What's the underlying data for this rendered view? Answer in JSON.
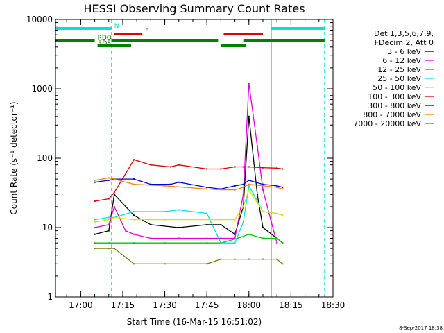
{
  "chart_data": {
    "type": "line",
    "title": "HESSI Observing Summary Count Rates",
    "xlabel": "Start Time (16-Mar-15 16:51:02)",
    "ylabel": "Count Rate (s⁻¹ detector⁻¹)",
    "timestamp": "8-Sep-2017 18:38",
    "y_scale": "log",
    "xlim": [
      "16:51",
      "18:30"
    ],
    "ylim": [
      1,
      10000
    ],
    "x_ticks": [
      "17:00",
      "17:15",
      "17:30",
      "17:45",
      "18:00",
      "18:15",
      "18:30"
    ],
    "y_ticks": [
      "1",
      "10",
      "100",
      "1000",
      "10000"
    ],
    "legend_header": [
      "Det 1,3,5,6,7,9,",
      "FDecim 2, Att 0"
    ],
    "legend_position": "right",
    "series": [
      {
        "name": "3 - 6 keV",
        "color": "#000000",
        "x": [
          "17:05",
          "17:10",
          "17:12",
          "17:19",
          "17:25",
          "17:35",
          "17:45",
          "17:50",
          "17:55",
          "17:58",
          "18:00",
          "18:03",
          "18:05",
          "18:10",
          "18:12"
        ],
        "values": [
          8,
          9,
          30,
          15,
          11,
          10,
          11,
          11,
          8,
          20,
          400,
          30,
          10,
          7,
          6
        ]
      },
      {
        "name": "6 - 12 keV",
        "color": "#e000e0",
        "x": [
          "17:05",
          "17:10",
          "17:12",
          "17:16",
          "17:19",
          "17:25",
          "17:35",
          "17:45",
          "17:50",
          "17:55",
          "17:58",
          "18:00",
          "18:03",
          "18:05",
          "18:08",
          "18:10"
        ],
        "values": [
          10,
          11,
          20,
          9,
          8,
          7,
          7,
          7,
          7,
          7,
          30,
          1200,
          150,
          35,
          12,
          6
        ]
      },
      {
        "name": "12 - 25 keV",
        "color": "#00c800",
        "x": [
          "17:05",
          "17:10",
          "17:19",
          "17:30",
          "17:45",
          "17:50",
          "17:56",
          "18:00",
          "18:05",
          "18:10",
          "18:12"
        ],
        "values": [
          6,
          6,
          6,
          6,
          6,
          6,
          7,
          8,
          7,
          7,
          6
        ]
      },
      {
        "name": "25 - 50 keV",
        "color": "#00e0e0",
        "x": [
          "17:05",
          "17:10",
          "17:12",
          "17:19",
          "17:30",
          "17:35",
          "17:45",
          "17:50",
          "17:55",
          "17:58",
          "18:00",
          "18:05",
          "18:10",
          "18:12"
        ],
        "values": [
          13,
          14,
          14,
          17,
          17,
          18,
          16,
          6,
          6,
          12,
          40,
          17,
          16,
          15
        ]
      },
      {
        "name": "50 - 100 keV",
        "color": "#e0e000",
        "x": [
          "17:05",
          "17:10",
          "17:12",
          "17:19",
          "17:30",
          "17:45",
          "17:50",
          "17:55",
          "17:58",
          "18:00",
          "18:05",
          "18:10",
          "18:12"
        ],
        "values": [
          12,
          13,
          14,
          13,
          13,
          13,
          13,
          13,
          20,
          35,
          17,
          16,
          15
        ]
      },
      {
        "name": "100 - 300 keV",
        "color": "#e00000",
        "x": [
          "17:05",
          "17:10",
          "17:12",
          "17:19",
          "17:25",
          "17:32",
          "17:35",
          "17:45",
          "17:50",
          "17:55",
          "17:58",
          "18:00",
          "18:05",
          "18:10",
          "18:12"
        ],
        "values": [
          24,
          26,
          32,
          95,
          80,
          75,
          80,
          70,
          70,
          75,
          75,
          75,
          73,
          72,
          70
        ]
      },
      {
        "name": "300 - 800 keV",
        "color": "#0000e0",
        "x": [
          "17:05",
          "17:10",
          "17:12",
          "17:19",
          "17:25",
          "17:32",
          "17:35",
          "17:45",
          "17:50",
          "17:55",
          "17:58",
          "18:00",
          "18:05",
          "18:10",
          "18:12"
        ],
        "values": [
          45,
          48,
          50,
          50,
          42,
          42,
          45,
          38,
          36,
          40,
          42,
          48,
          42,
          40,
          38
        ]
      },
      {
        "name": "800 - 7000 keV",
        "color": "#ff8000",
        "x": [
          "17:05",
          "17:10",
          "17:12",
          "17:19",
          "17:30",
          "17:45",
          "17:50",
          "17:55",
          "17:58",
          "18:00",
          "18:05",
          "18:10",
          "18:12"
        ],
        "values": [
          48,
          52,
          50,
          42,
          40,
          36,
          35,
          35,
          38,
          42,
          40,
          38,
          36
        ]
      },
      {
        "name": "7000 - 20000 keV",
        "color": "#808000",
        "x": [
          "17:05",
          "17:10",
          "17:12",
          "17:19",
          "17:30",
          "17:45",
          "17:50",
          "17:55",
          "18:00",
          "18:05",
          "18:10",
          "18:12"
        ],
        "values": [
          5,
          5,
          5,
          3,
          3,
          3,
          3.5,
          3.5,
          3.5,
          3.5,
          3.5,
          3
        ]
      }
    ],
    "vlines": [
      {
        "x": "16:51",
        "color": "#00e0e0",
        "style": "solid"
      },
      {
        "x": "17:11",
        "color": "#00e0e0",
        "style": "dashed"
      },
      {
        "x": "18:08",
        "color": "#00e0e0",
        "style": "solid"
      },
      {
        "x": "18:27",
        "color": "#00e0e0",
        "style": "dashed"
      }
    ],
    "flags": [
      {
        "label": "N",
        "color": "#00e0e0",
        "segments": [
          [
            "16:51",
            "17:11"
          ],
          [
            "18:08",
            "18:27"
          ]
        ]
      },
      {
        "label": "F",
        "color": "#e00000",
        "segments": [
          [
            "17:12",
            "17:22"
          ],
          [
            "17:51",
            "18:05"
          ]
        ]
      },
      {
        "label": "RDO",
        "color": "#008000",
        "segments": [
          [
            "16:51",
            "17:05"
          ],
          [
            "17:11",
            "17:49"
          ],
          [
            "17:58",
            "18:27"
          ]
        ]
      },
      {
        "label": "RDS",
        "color": "#008000",
        "segments": [
          [
            "17:06",
            "17:18"
          ],
          [
            "17:50",
            "17:59"
          ]
        ]
      }
    ]
  }
}
